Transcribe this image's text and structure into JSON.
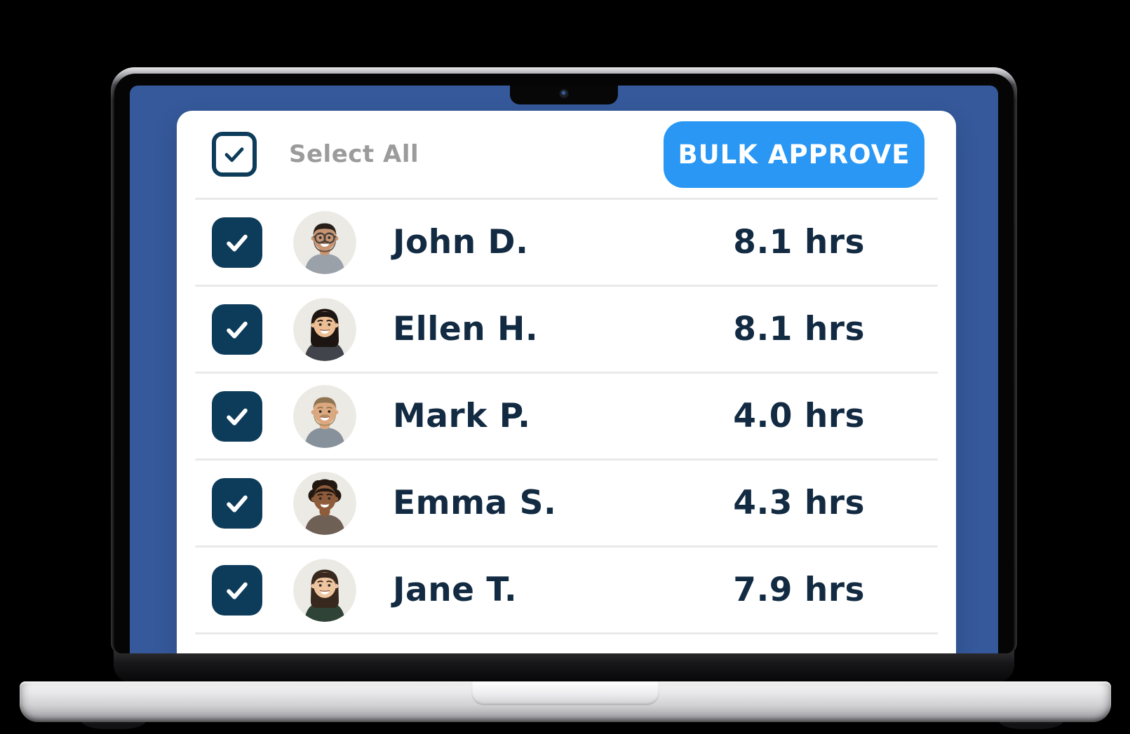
{
  "device": {
    "type": "laptop-mockup",
    "screen_background": "#35599B",
    "has_camera_notch": true
  },
  "header": {
    "select_all": {
      "label": "Select All",
      "checked": true
    },
    "bulk_approve": {
      "label": "BULK APPROVE"
    }
  },
  "list": {
    "rows": [
      {
        "name": "John D.",
        "hours": "8.1 hrs",
        "checked": true,
        "avatar": {
          "style": "short",
          "skin": "#C89574",
          "hair": "#27201A",
          "shirt": "#9AA1A9",
          "glasses": true,
          "beard": "#5C4636"
        }
      },
      {
        "name": "Ellen H.",
        "hours": "8.1 hrs",
        "checked": true,
        "avatar": {
          "style": "long",
          "skin": "#EDBE93",
          "hair": "#1C1512",
          "shirt": "#41454B",
          "glasses": false
        }
      },
      {
        "name": "Mark P.",
        "hours": "4.0 hrs",
        "checked": true,
        "avatar": {
          "style": "short",
          "skin": "#DCA87F",
          "hair": "#8F7552",
          "shirt": "#87919B",
          "glasses": false,
          "beard": "#A3855C"
        }
      },
      {
        "name": "Emma S.",
        "hours": "4.3 hrs",
        "checked": true,
        "avatar": {
          "style": "curly",
          "skin": "#8E5C3B",
          "hair": "#221811",
          "shirt": "#6E6055",
          "glasses": false
        }
      },
      {
        "name": "Jane T.",
        "hours": "7.9 hrs",
        "checked": true,
        "avatar": {
          "style": "long",
          "skin": "#EFC5A0",
          "hair": "#38281D",
          "shirt": "#2F4336",
          "glasses": false
        }
      }
    ]
  },
  "colors": {
    "screen_blue": "#35599B",
    "checkbox_navy": "#0D3C5A",
    "name_text": "#132B42",
    "select_all_gray": "#9B9B9B",
    "button_blue": "#2997F3",
    "divider": "#E9E9E9",
    "card_background": "#FFFFFF",
    "avatar_background": "#ECEAE5"
  },
  "icons": {
    "check": "check-icon",
    "camera": "camera-dot"
  }
}
